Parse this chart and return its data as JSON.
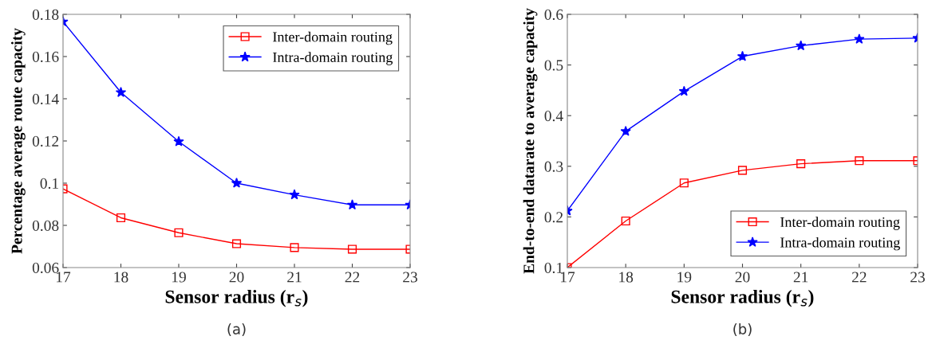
{
  "chart_data": [
    {
      "type": "line",
      "xlabel": "Sensor radius (r$_{s}$)",
      "ylabel": "Percentage average route capacity",
      "annotations": [
        "(a)"
      ],
      "x": [
        17,
        18,
        19,
        20,
        21,
        22,
        23
      ],
      "xlim": [
        17,
        23
      ],
      "xticks": [
        17,
        18,
        19,
        20,
        21,
        22,
        23
      ],
      "ylim": [
        0.06,
        0.18
      ],
      "yticks": [
        0.06,
        0.08,
        0.1,
        0.12,
        0.14,
        0.16,
        0.18
      ],
      "grid": false,
      "legend": "top right",
      "series": [
        {
          "name": "Inter-domain routing",
          "color": "#ff0000",
          "marker": "square",
          "values": [
            0.0973,
            0.0836,
            0.0765,
            0.0713,
            0.0695,
            0.0687,
            0.0687
          ]
        },
        {
          "name": "Intra-domain routing",
          "color": "#0000ff",
          "marker": "star",
          "values": [
            0.1765,
            0.143,
            0.1197,
            0.1,
            0.0945,
            0.0897,
            0.0897
          ]
        }
      ]
    },
    {
      "type": "line",
      "xlabel": "Sensor radius (r$_{s}$)",
      "ylabel": "End-to-end datarate to average capacity",
      "annotations": [
        "(b)"
      ],
      "x": [
        17,
        18,
        19,
        20,
        21,
        22,
        23
      ],
      "xlim": [
        17,
        23
      ],
      "xticks": [
        17,
        18,
        19,
        20,
        21,
        22,
        23
      ],
      "ylim": [
        0.1,
        0.6
      ],
      "yticks": [
        0.1,
        0.2,
        0.3,
        0.4,
        0.5,
        0.6
      ],
      "grid": false,
      "legend": "bottom right",
      "series": [
        {
          "name": "Inter-domain routing",
          "color": "#ff0000",
          "marker": "square",
          "values": [
            0.1,
            0.192,
            0.267,
            0.292,
            0.305,
            0.311,
            0.311
          ]
        },
        {
          "name": "Intra-domain routing",
          "color": "#0000ff",
          "marker": "star",
          "values": [
            0.212,
            0.369,
            0.448,
            0.517,
            0.538,
            0.551,
            0.553
          ]
        }
      ]
    }
  ]
}
